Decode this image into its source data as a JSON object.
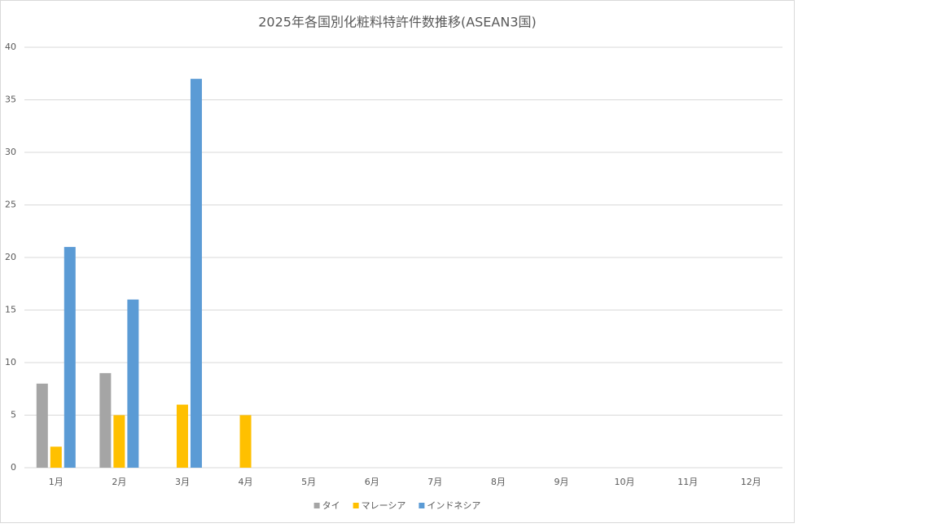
{
  "chart_data": {
    "type": "bar",
    "title": "2025年各国別化粧料特許件数推移(ASEAN3国)",
    "categories": [
      "1月",
      "2月",
      "3月",
      "4月",
      "5月",
      "6月",
      "7月",
      "8月",
      "9月",
      "10月",
      "11月",
      "12月"
    ],
    "series": [
      {
        "name": "タイ",
        "color": "#a5a5a5",
        "values": [
          8,
          9,
          null,
          null,
          null,
          null,
          null,
          null,
          null,
          null,
          null,
          null
        ]
      },
      {
        "name": "マレーシア",
        "color": "#ffc000",
        "values": [
          2,
          5,
          6,
          5,
          null,
          null,
          null,
          null,
          null,
          null,
          null,
          null
        ]
      },
      {
        "name": "インドネシア",
        "color": "#5b9bd5",
        "values": [
          21,
          16,
          37,
          null,
          null,
          null,
          null,
          null,
          null,
          null,
          null,
          null
        ]
      }
    ],
    "ylim": [
      0,
      40
    ],
    "yticks": [
      0,
      5,
      10,
      15,
      20,
      25,
      30,
      35,
      40
    ],
    "grid": true,
    "legend": "bottom"
  }
}
